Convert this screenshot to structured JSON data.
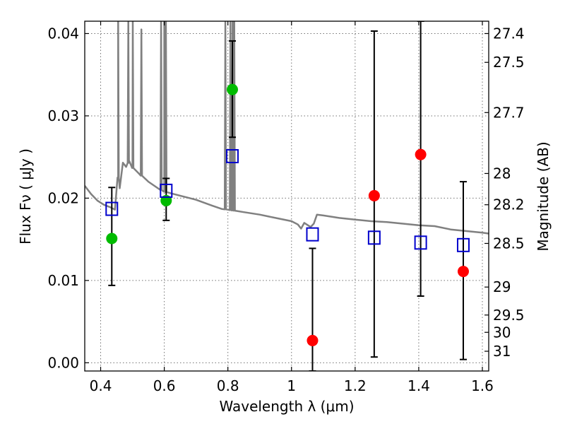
{
  "chart_data": {
    "type": "scatter",
    "xlabel": "Wavelength  λ (μm)",
    "ylabel": "Flux  Fν  ( μJy )",
    "y2label": "Magnitude (AB)",
    "xlim": [
      0.35,
      1.62
    ],
    "ylim": [
      -0.001,
      0.0415
    ],
    "grid": true,
    "x_ticks": [
      0.4,
      0.6,
      0.8,
      1.0,
      1.2,
      1.4,
      1.6
    ],
    "x_tick_labels": [
      "0.4",
      "0.6",
      "0.8",
      "1",
      "1.2",
      "1.4",
      "1.6"
    ],
    "y_ticks": [
      0.0,
      0.01,
      0.02,
      0.03,
      0.04
    ],
    "y_tick_labels": [
      "0.00",
      "0.01",
      "0.02",
      "0.03",
      "0.04"
    ],
    "y2_ticks": [
      {
        "label": "27.4",
        "flux": 0.04
      },
      {
        "label": "27.5",
        "flux": 0.0365
      },
      {
        "label": "27.7",
        "flux": 0.0304
      },
      {
        "label": "28",
        "flux": 0.023
      },
      {
        "label": "28.2",
        "flux": 0.0192
      },
      {
        "label": "28.5",
        "flux": 0.0145
      },
      {
        "label": "29",
        "flux": 0.0092
      },
      {
        "label": "29.5",
        "flux": 0.0058
      },
      {
        "label": "30",
        "flux": 0.0037
      },
      {
        "label": "31",
        "flux": 0.0014
      }
    ],
    "series": [
      {
        "marker": "circle-green",
        "color": "#00bb00",
        "points": [
          {
            "x": 0.435,
            "y": 0.0151
          },
          {
            "x": 0.606,
            "y": 0.0197
          },
          {
            "x": 0.814,
            "y": 0.0332
          }
        ]
      },
      {
        "marker": "circle-red",
        "color": "#ff0000",
        "points": [
          {
            "x": 1.066,
            "y": 0.0027
          },
          {
            "x": 1.26,
            "y": 0.0203
          },
          {
            "x": 1.406,
            "y": 0.0253
          },
          {
            "x": 1.54,
            "y": 0.0111
          }
        ]
      },
      {
        "marker": "square-open-blue",
        "color": "#0000cc",
        "points": [
          {
            "x": 0.435,
            "y": 0.0187
          },
          {
            "x": 0.606,
            "y": 0.0209
          },
          {
            "x": 0.814,
            "y": 0.0251
          },
          {
            "x": 1.066,
            "y": 0.0156
          },
          {
            "x": 1.26,
            "y": 0.0152
          },
          {
            "x": 1.406,
            "y": 0.0146
          },
          {
            "x": 1.54,
            "y": 0.0143
          }
        ]
      }
    ],
    "errorbars": [
      {
        "x": 0.435,
        "ylow": 0.0094,
        "yhigh": 0.0213
      },
      {
        "x": 0.606,
        "ylow": 0.0173,
        "yhigh": 0.0224
      },
      {
        "x": 0.814,
        "ylow": 0.0274,
        "yhigh": 0.0391
      },
      {
        "x": 1.066,
        "ylow": -0.001,
        "yhigh": 0.0139
      },
      {
        "x": 1.26,
        "ylow": 0.0007,
        "yhigh": 0.0403
      },
      {
        "x": 1.406,
        "ylow": 0.0081,
        "yhigh": 0.0415
      },
      {
        "x": 1.54,
        "ylow": 0.0004,
        "yhigh": 0.022
      }
    ],
    "model_sed": {
      "color": "#808080",
      "continuum": [
        [
          0.35,
          0.0215
        ],
        [
          0.37,
          0.0205
        ],
        [
          0.39,
          0.0197
        ],
        [
          0.41,
          0.0192
        ],
        [
          0.43,
          0.0189
        ],
        [
          0.445,
          0.0186
        ],
        [
          0.455,
          0.0225
        ],
        [
          0.46,
          0.0212
        ],
        [
          0.47,
          0.0243
        ],
        [
          0.48,
          0.0238
        ],
        [
          0.49,
          0.0245
        ],
        [
          0.5,
          0.0237
        ],
        [
          0.52,
          0.023
        ],
        [
          0.55,
          0.022
        ],
        [
          0.58,
          0.0212
        ],
        [
          0.6,
          0.0208
        ],
        [
          0.62,
          0.0206
        ],
        [
          0.65,
          0.0203
        ],
        [
          0.7,
          0.0198
        ],
        [
          0.75,
          0.0191
        ],
        [
          0.78,
          0.0187
        ],
        [
          0.8,
          0.0186
        ],
        [
          0.85,
          0.0183
        ],
        [
          0.9,
          0.018
        ],
        [
          0.95,
          0.0176
        ],
        [
          1.0,
          0.0172
        ],
        [
          1.02,
          0.0168
        ],
        [
          1.03,
          0.0163
        ],
        [
          1.04,
          0.017
        ],
        [
          1.06,
          0.0165
        ],
        [
          1.07,
          0.0169
        ],
        [
          1.08,
          0.018
        ],
        [
          1.1,
          0.0179
        ],
        [
          1.15,
          0.0176
        ],
        [
          1.2,
          0.0174
        ],
        [
          1.25,
          0.0172
        ],
        [
          1.3,
          0.0171
        ],
        [
          1.35,
          0.0169
        ],
        [
          1.4,
          0.0167
        ],
        [
          1.45,
          0.0166
        ],
        [
          1.5,
          0.0162
        ],
        [
          1.55,
          0.016
        ],
        [
          1.6,
          0.0158
        ],
        [
          1.62,
          0.0157
        ]
      ],
      "emission_lines": [
        {
          "x": 0.455,
          "peak": 0.0415
        },
        {
          "x": 0.487,
          "peak": 0.0415
        },
        {
          "x": 0.501,
          "peak": 0.0415
        },
        {
          "x": 0.528,
          "peak": 0.0405
        },
        {
          "x": 0.59,
          "peak": 0.0415
        },
        {
          "x": 0.6,
          "peak": 0.0415
        },
        {
          "x": 0.605,
          "peak": 0.0415
        },
        {
          "x": 0.792,
          "peak": 0.0415
        },
        {
          "x": 0.808,
          "peak": 0.0415
        },
        {
          "x": 0.815,
          "peak": 0.0415
        },
        {
          "x": 0.82,
          "peak": 0.0415
        }
      ]
    }
  }
}
